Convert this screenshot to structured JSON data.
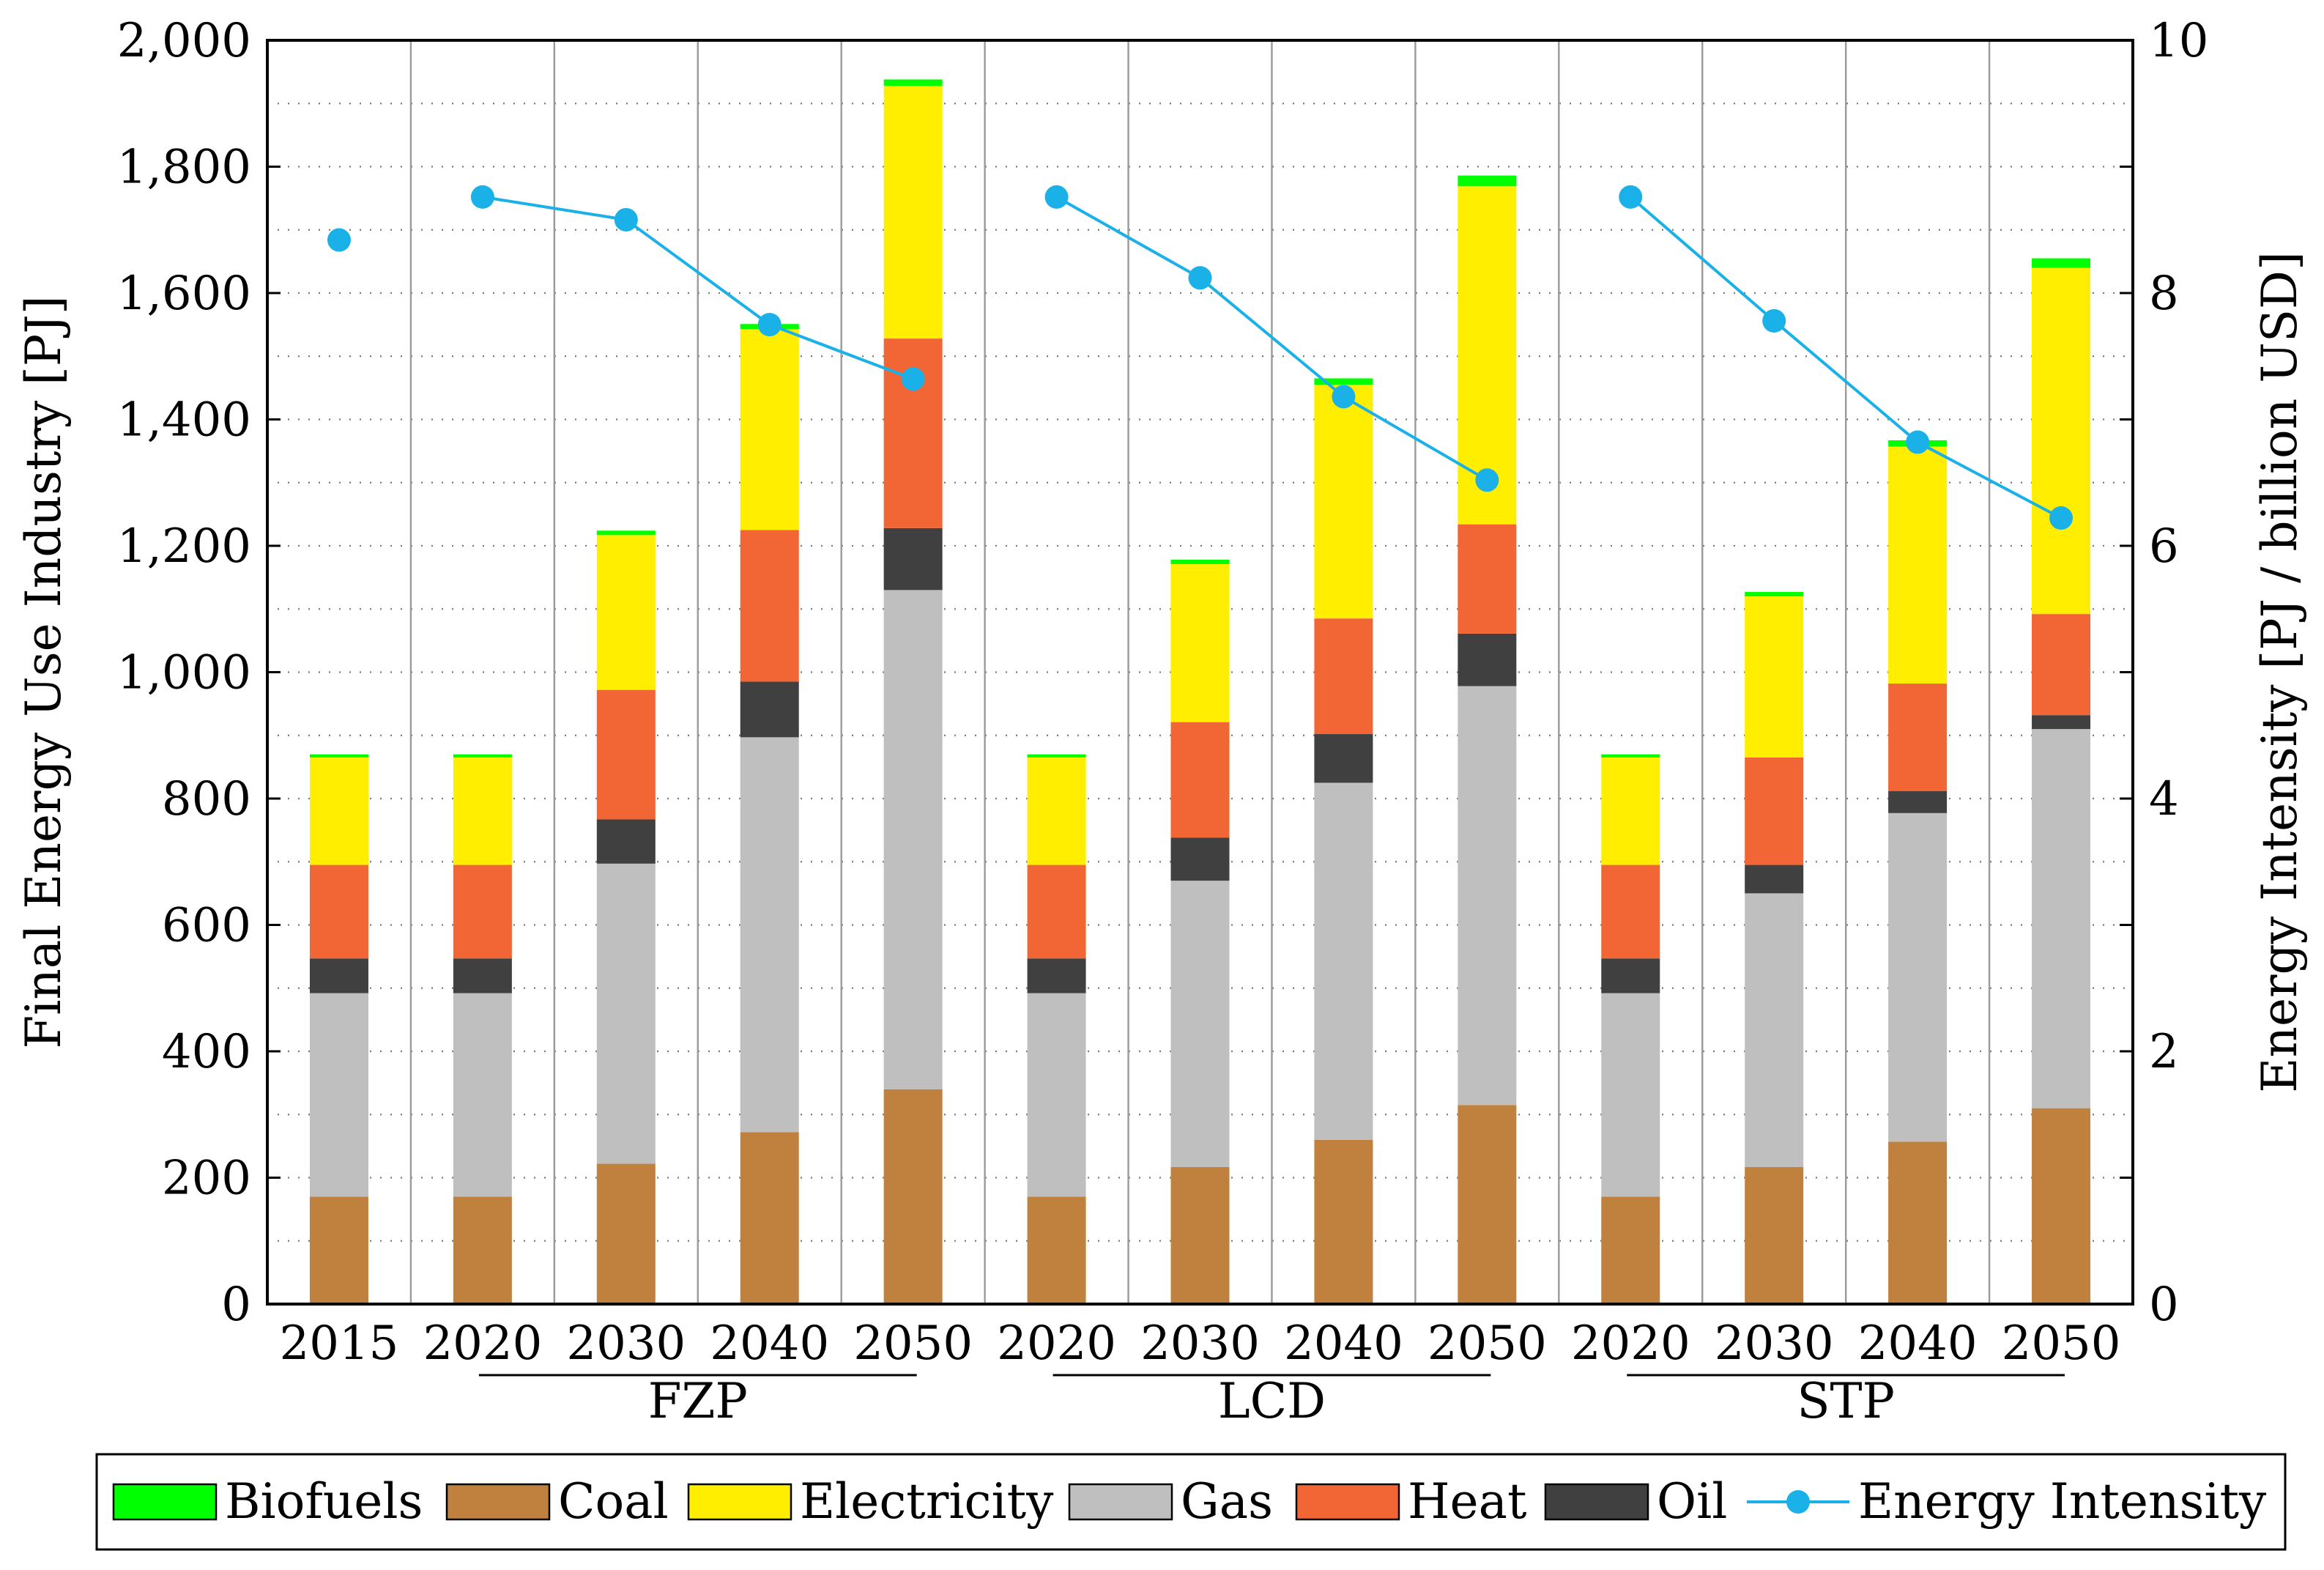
{
  "chart_data": {
    "type": "bar",
    "stacked": true,
    "xlabel": "",
    "ylabel": "Final Energy Use Industry [PJ]",
    "y2label": "Energy Intensity [PJ / billion USD]",
    "ylim": [
      0,
      2000
    ],
    "y2lim": [
      0,
      10
    ],
    "yticks": [
      "0",
      "200",
      "400",
      "600",
      "800",
      "1,000",
      "1,200",
      "1,400",
      "1,600",
      "1,800",
      "2,000"
    ],
    "y2ticks": [
      "0",
      "2",
      "4",
      "6",
      "8",
      "10"
    ],
    "grid": true,
    "legend_position": "bottom",
    "categories": [
      "2015",
      "2020",
      "2030",
      "2040",
      "2050",
      "2020",
      "2030",
      "2040",
      "2050",
      "2020",
      "2030",
      "2040",
      "2050"
    ],
    "groups": [
      {
        "label": "FZP",
        "start": 1,
        "end": 4
      },
      {
        "label": "LCD",
        "start": 5,
        "end": 8
      },
      {
        "label": "STP",
        "start": 9,
        "end": 12
      }
    ],
    "series": [
      {
        "name": "Coal",
        "color": "#c0813f",
        "values": [
          170,
          170,
          222,
          272,
          340,
          170,
          217,
          260,
          315,
          170,
          217,
          257,
          310
        ]
      },
      {
        "name": "Gas",
        "color": "#bfbfbf",
        "values": [
          322,
          322,
          475,
          625,
          790,
          322,
          453,
          565,
          663,
          322,
          433,
          520,
          600
        ]
      },
      {
        "name": "Oil",
        "color": "#404040",
        "values": [
          55,
          55,
          70,
          88,
          98,
          55,
          68,
          77,
          83,
          55,
          45,
          35,
          22
        ]
      },
      {
        "name": "Heat",
        "color": "#f26535",
        "values": [
          148,
          148,
          205,
          240,
          300,
          148,
          183,
          183,
          173,
          148,
          170,
          170,
          160
        ]
      },
      {
        "name": "Electricity",
        "color": "#ffee00",
        "values": [
          170,
          170,
          245,
          318,
          400,
          170,
          250,
          370,
          535,
          170,
          255,
          375,
          548
        ]
      },
      {
        "name": "Biofuels",
        "color": "#00ff00",
        "values": [
          5,
          5,
          7,
          8,
          10,
          5,
          7,
          10,
          17,
          5,
          7,
          10,
          15
        ]
      }
    ],
    "line_series": {
      "name": "Energy Intensity",
      "color": "#1ab0e8",
      "values": [
        8.42,
        8.76,
        8.58,
        7.75,
        7.32,
        8.76,
        8.12,
        7.18,
        6.52,
        8.76,
        7.78,
        6.82,
        6.22
      ],
      "connected_segments": [
        [
          1,
          4
        ],
        [
          5,
          8
        ],
        [
          9,
          12
        ]
      ]
    },
    "legend": [
      "Biofuels",
      "Coal",
      "Electricity",
      "Gas",
      "Heat",
      "Oil",
      "Energy Intensity"
    ]
  }
}
